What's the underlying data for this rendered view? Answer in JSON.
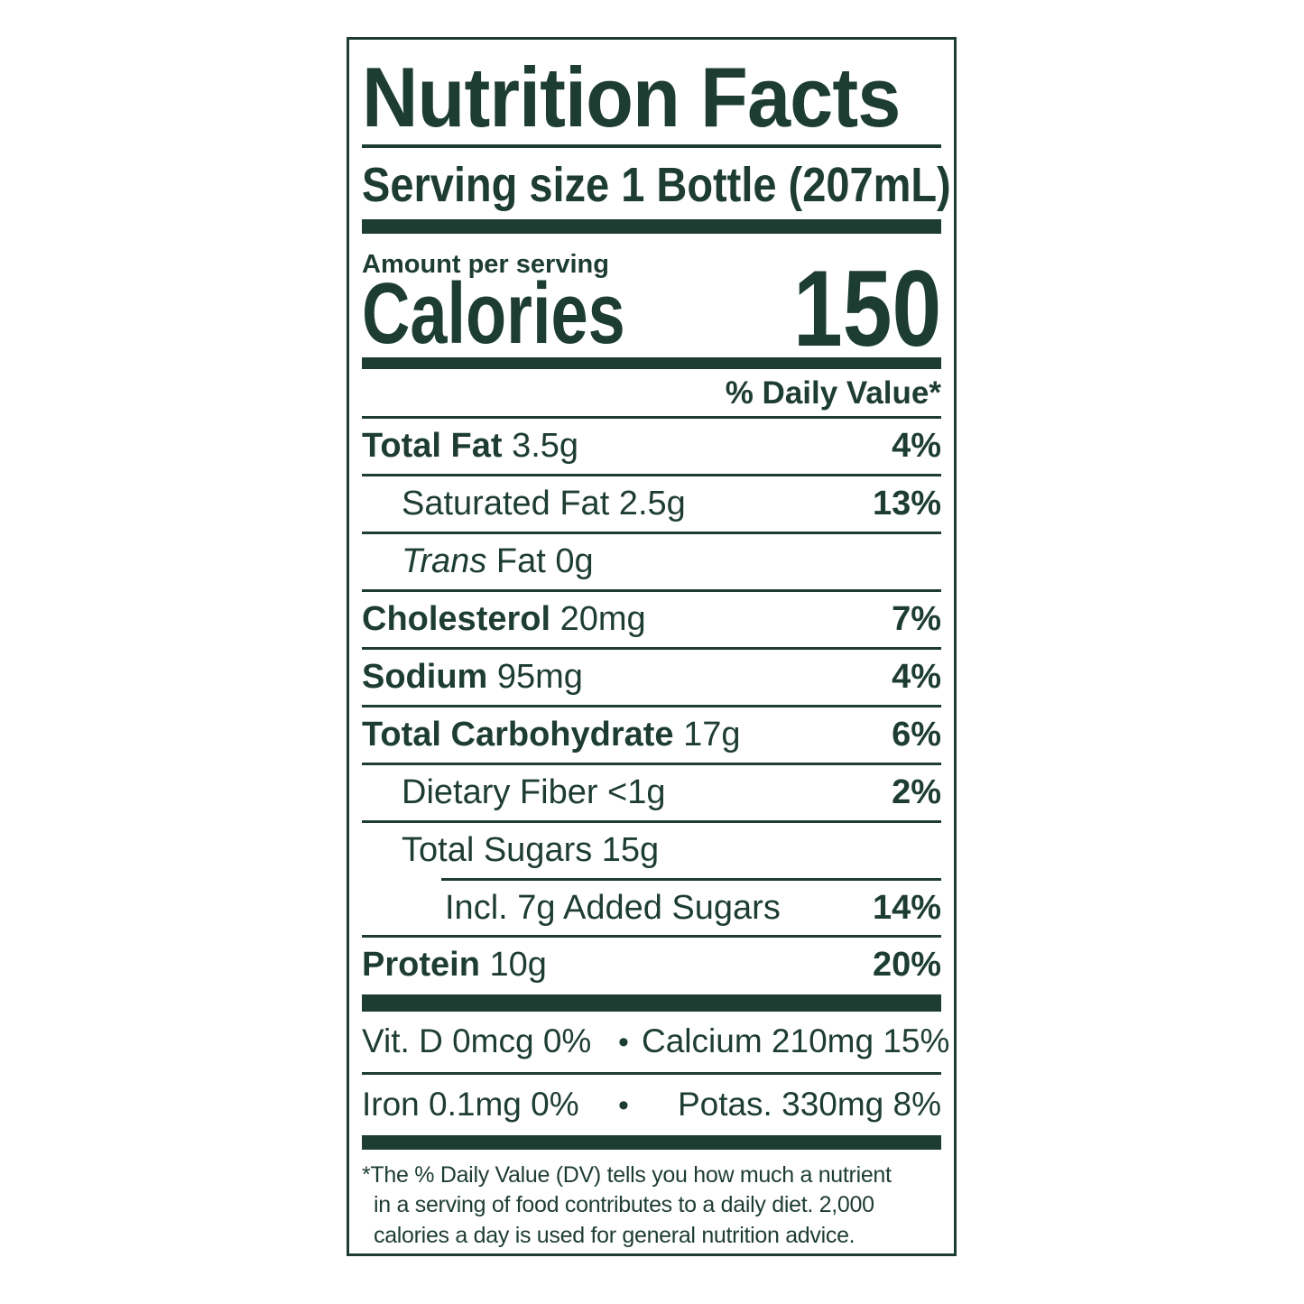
{
  "colors": {
    "ink": "#1e3d32",
    "background": "#ffffff"
  },
  "label": {
    "title": "Nutrition Facts",
    "serving_size": "Serving size 1 Bottle (207mL)",
    "amount_per_serving": "Amount per serving",
    "calories_label": "Calories",
    "calories_value": "150",
    "daily_value_header": "% Daily Value*",
    "rows": [
      {
        "name": "Total Fat",
        "amount": " 3.5g",
        "dv": "4%"
      },
      {
        "name": "Saturated Fat",
        "amount": " 2.5g",
        "dv": "13%"
      },
      {
        "name_italic": "Trans",
        "name": " Fat",
        "amount": " 0g",
        "dv": ""
      },
      {
        "name": "Cholesterol",
        "amount": " 20mg",
        "dv": "7%"
      },
      {
        "name": "Sodium",
        "amount": " 95mg",
        "dv": "4%"
      },
      {
        "name": "Total Carbohydrate",
        "amount": " 17g",
        "dv": "6%"
      },
      {
        "name": "Dietary Fiber",
        "amount": " <1g",
        "dv": "2%"
      },
      {
        "name": "Total Sugars",
        "amount": " 15g",
        "dv": ""
      },
      {
        "name": "Incl. 7g Added Sugars",
        "amount": "",
        "dv": "14%"
      },
      {
        "name": "Protein",
        "amount": " 10g",
        "dv": "20%"
      }
    ],
    "micronutrients": [
      {
        "left": "Vit. D 0mcg 0%",
        "bullet": "•",
        "right": "Calcium 210mg 15%"
      },
      {
        "left": "Iron 0.1mg 0%",
        "bullet": "•",
        "right": "Potas. 330mg 8%"
      }
    ],
    "footnote_lines": [
      "*The % Daily Value (DV) tells you how much a nutrient",
      "in a serving of food contributes to a daily diet. 2,000",
      "calories a day is used for general nutrition advice."
    ]
  }
}
